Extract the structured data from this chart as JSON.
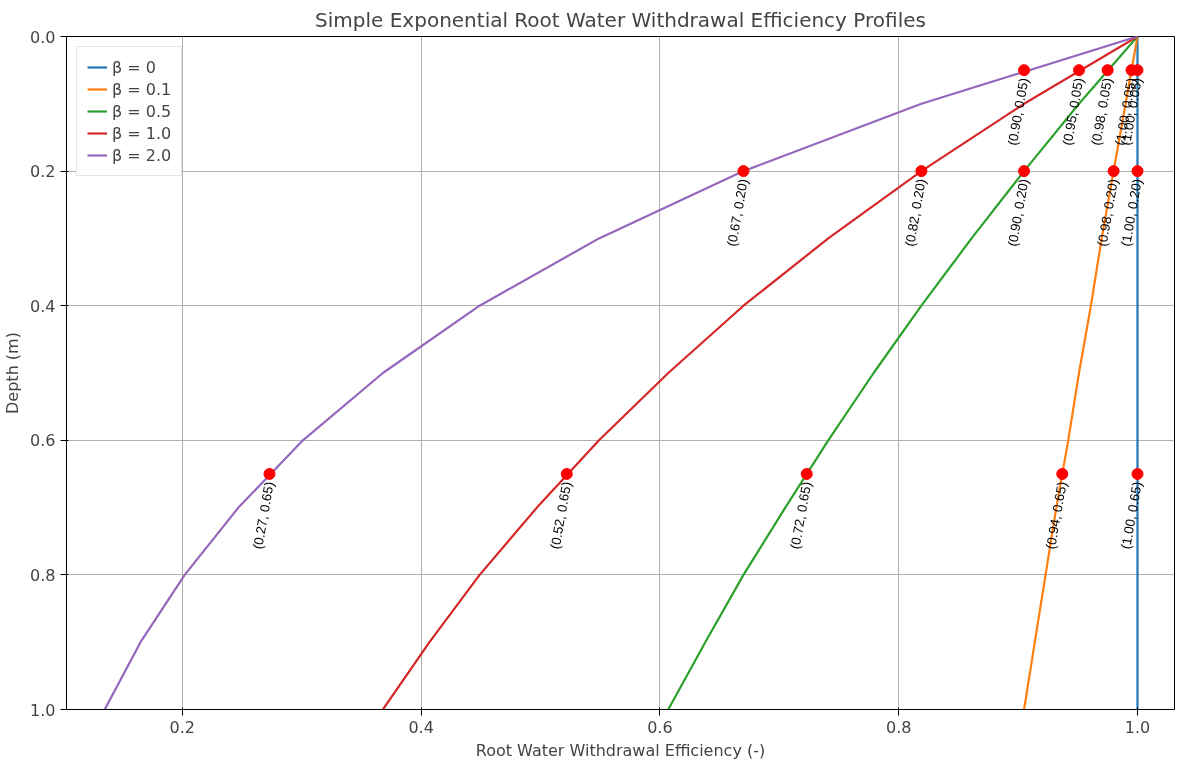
{
  "chart_data": {
    "type": "line",
    "title": "Simple Exponential Root Water Withdrawal Efficiency Profiles",
    "xlabel": "Root Water Withdrawal Efficiency (-)",
    "ylabel": "Depth (m)",
    "xlim": [
      0.103,
      1.031
    ],
    "ylim": [
      1.0,
      0.0
    ],
    "xticks": [
      0.2,
      0.4,
      0.6,
      0.8,
      {
        "value": 1,
        "label": "1.0"
      }
    ],
    "yticks": [
      {
        "value": 0,
        "label": "0.0"
      },
      0.2,
      0.4,
      0.6,
      0.8,
      {
        "value": 1,
        "label": "1.0"
      }
    ],
    "grid": true,
    "legend": "top left",
    "series": [
      {
        "name": "β = 0",
        "color": "#1f77b4",
        "x": [
          1,
          1,
          1,
          1,
          1,
          1,
          1,
          1,
          1,
          1,
          1
        ],
        "values": [
          0,
          0.1,
          0.2,
          0.3,
          0.4,
          0.5,
          0.6,
          0.7,
          0.8,
          0.9,
          1.0
        ]
      },
      {
        "name": "β = 0.1",
        "color": "#ff7f0e",
        "x": [
          1,
          0.99,
          0.98,
          0.97,
          0.961,
          0.951,
          0.942,
          0.932,
          0.923,
          0.914,
          0.905
        ],
        "values": [
          0,
          0.1,
          0.2,
          0.3,
          0.4,
          0.5,
          0.6,
          0.7,
          0.8,
          0.9,
          1.0
        ]
      },
      {
        "name": "β = 0.5",
        "color": "#2ca02c",
        "x": [
          1,
          0.951,
          0.905,
          0.861,
          0.819,
          0.779,
          0.741,
          0.705,
          0.67,
          0.638,
          0.607
        ],
        "values": [
          0,
          0.1,
          0.2,
          0.3,
          0.4,
          0.5,
          0.6,
          0.7,
          0.8,
          0.9,
          1.0
        ]
      },
      {
        "name": "β = 1.0",
        "color": "#d62728",
        "x": [
          1,
          0.905,
          0.819,
          0.741,
          0.67,
          0.607,
          0.549,
          0.497,
          0.449,
          0.407,
          0.368
        ],
        "values": [
          0,
          0.1,
          0.2,
          0.3,
          0.4,
          0.5,
          0.6,
          0.7,
          0.8,
          0.9,
          1.0
        ]
      },
      {
        "name": "β = 2.0",
        "color": "#9467bd",
        "x": [
          1,
          0.819,
          0.67,
          0.549,
          0.449,
          0.368,
          0.301,
          0.247,
          0.202,
          0.165,
          0.135
        ],
        "values": [
          0,
          0.1,
          0.2,
          0.3,
          0.4,
          0.5,
          0.6,
          0.7,
          0.8,
          0.9,
          1.0
        ]
      },
      {
        "type": "scatter",
        "marker": "circle",
        "color": "#ff0000",
        "x": [
          1.0,
          0.995,
          0.975,
          0.951,
          0.905,
          1.0,
          0.98,
          0.905,
          0.819,
          0.67,
          1.0,
          0.937,
          0.723,
          0.522,
          0.273
        ],
        "values": [
          0.05,
          0.05,
          0.05,
          0.05,
          0.05,
          0.2,
          0.2,
          0.2,
          0.2,
          0.2,
          0.65,
          0.65,
          0.65,
          0.65,
          0.65
        ],
        "value_labels": [
          "(1.00, 0.05)",
          "(1.00, 0.05)",
          "(0.98, 0.05)",
          "(0.95, 0.05)",
          "(0.90, 0.05)",
          "(1.00, 0.20)",
          "(0.98, 0.20)",
          "(0.90, 0.20)",
          "(0.82, 0.20)",
          "(0.67, 0.20)",
          "(1.00, 0.65)",
          "(0.94, 0.65)",
          "(0.72, 0.65)",
          "(0.52, 0.65)",
          "(0.27, 0.65)"
        ]
      }
    ]
  }
}
